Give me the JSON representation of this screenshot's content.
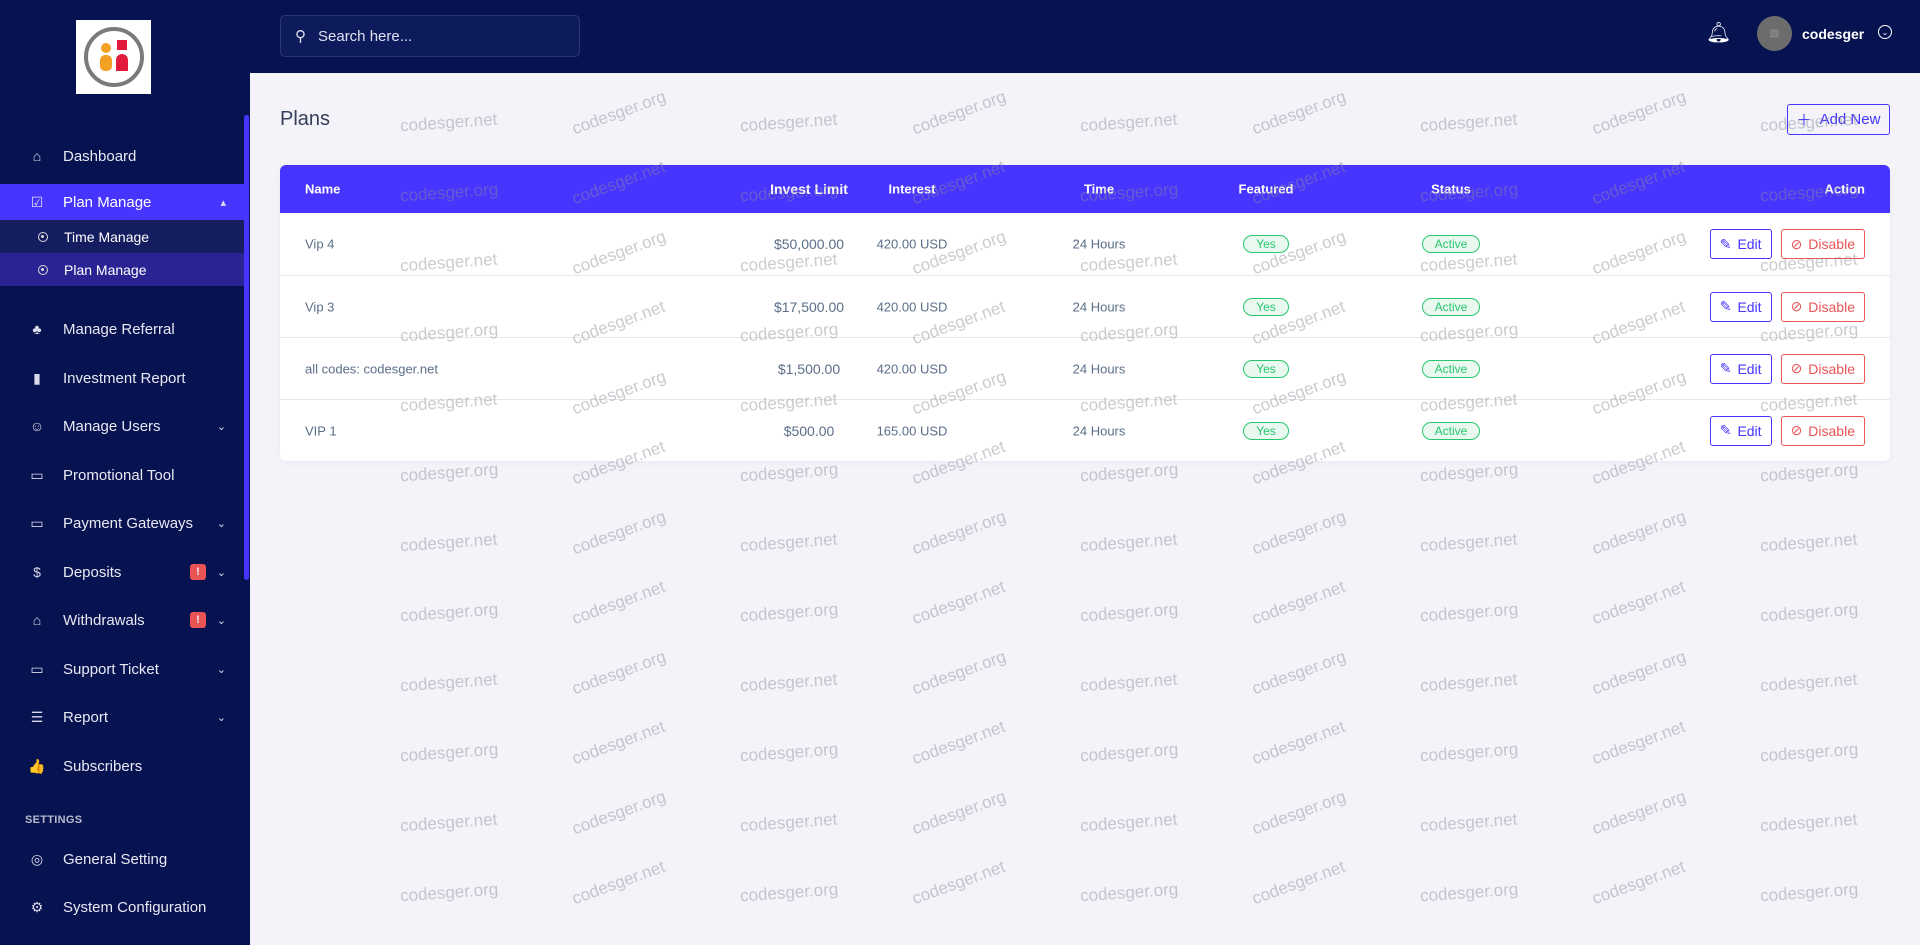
{
  "app": {
    "logo_alt": "hyip logo"
  },
  "header": {
    "search_placeholder": "Search here...",
    "username": "codesger"
  },
  "sidebar": {
    "items": [
      {
        "label": "Dashboard",
        "icon": "home-icon",
        "glyph": "⌂"
      },
      {
        "label": "Plan Manage",
        "icon": "clipboard-check-icon",
        "glyph": "☑",
        "chev": "▴"
      },
      {
        "label": "Manage Referral",
        "icon": "tree-icon",
        "glyph": "♣"
      },
      {
        "label": "Investment Report",
        "icon": "bar-chart-icon",
        "glyph": "▮"
      },
      {
        "label": "Manage Users",
        "icon": "users-icon",
        "glyph": "☺",
        "chev": "⌄"
      },
      {
        "label": "Promotional Tool",
        "icon": "ad-icon",
        "glyph": "▭"
      },
      {
        "label": "Payment Gateways",
        "icon": "credit-card-icon",
        "glyph": "▭",
        "chev": "⌄"
      },
      {
        "label": "Deposits",
        "icon": "invoice-dollar-icon",
        "glyph": "$",
        "chev": "⌄",
        "badge": "!"
      },
      {
        "label": "Withdrawals",
        "icon": "bank-icon",
        "glyph": "⌂",
        "chev": "⌄",
        "badge": "!"
      },
      {
        "label": "Support Ticket",
        "icon": "ticket-icon",
        "glyph": "▭",
        "chev": "⌄"
      },
      {
        "label": "Report",
        "icon": "list-icon",
        "glyph": "☰",
        "chev": "⌄"
      },
      {
        "label": "Subscribers",
        "icon": "thumbs-up-icon",
        "glyph": "👍"
      },
      {
        "label": "General Setting",
        "icon": "life-ring-icon",
        "glyph": "◎"
      },
      {
        "label": "System Configuration",
        "icon": "gear-icon",
        "glyph": "⚙"
      }
    ],
    "sub_items": [
      {
        "label": "Time Manage"
      },
      {
        "label": "Plan Manage"
      }
    ],
    "settings_label": "SETTINGS"
  },
  "page": {
    "title": "Plans",
    "add_new": "Add New"
  },
  "table": {
    "headers": [
      "Name",
      "Invest Limit",
      "Interest",
      "Time",
      "Featured",
      "Status",
      "Action"
    ],
    "rows": [
      {
        "name": "Vip 4",
        "limit": "$50,000.00",
        "interest": "420.00 USD",
        "time": "24 Hours",
        "featured": "Yes",
        "status": "Active"
      },
      {
        "name": "Vip 3",
        "limit": "$17,500.00",
        "interest": "420.00 USD",
        "time": "24 Hours",
        "featured": "Yes",
        "status": "Active"
      },
      {
        "name": "all codes: codesger.net",
        "limit": "$1,500.00",
        "interest": "420.00 USD",
        "time": "24 Hours",
        "featured": "Yes",
        "status": "Active"
      },
      {
        "name": "VIP 1",
        "limit": "$500.00",
        "interest": "165.00 USD",
        "time": "24 Hours",
        "featured": "Yes",
        "status": "Active"
      }
    ],
    "edit_label": "Edit",
    "disable_label": "Disable"
  },
  "watermark": [
    "codesger.net",
    "codesger.org"
  ],
  "colors": {
    "sidebar": "#071251",
    "accent": "#4634ff",
    "success": "#28c76f",
    "danger": "#ea5455"
  }
}
